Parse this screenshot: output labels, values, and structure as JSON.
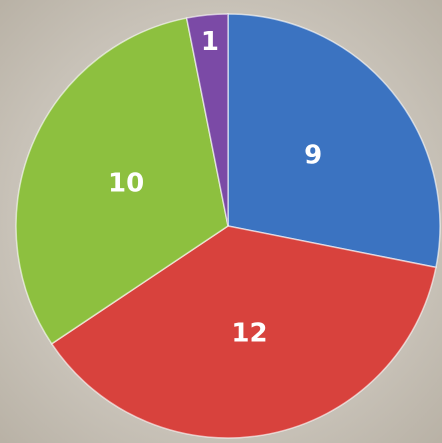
{
  "chart_data": {
    "type": "pie",
    "values": [
      9,
      12,
      10,
      1
    ],
    "colors": [
      "#3b73c1",
      "#d8423d",
      "#8dc03f",
      "#7b4aa6"
    ]
  }
}
